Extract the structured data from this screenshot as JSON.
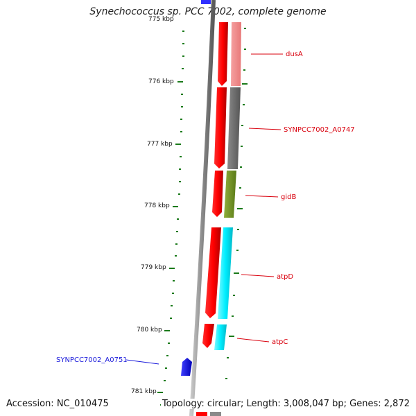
{
  "title": "Synechococcus sp. PCC 7002, complete genome",
  "accession": "Accession: NC_010475",
  "topology": "Topology: circular; Length: 3,008,047 bp; Genes: 2,872",
  "ticks": [
    "775 kbp",
    "776 kbp",
    "777 kbp",
    "778 kbp",
    "779 kbp",
    "780 kbp",
    "781 kbp"
  ],
  "genes": [
    {
      "name": "dusA",
      "color": "#d9000d"
    },
    {
      "name": "SYNPCC7002_A0747",
      "color": "#d9000d"
    },
    {
      "name": "gidB",
      "color": "#d9000d"
    },
    {
      "name": "atpD",
      "color": "#d9000d"
    },
    {
      "name": "atpC",
      "color": "#d9000d"
    },
    {
      "name": "SYNPCC7002_A0751",
      "color": "#1a1adb"
    }
  ],
  "colors": {
    "cds": "#ff0000",
    "reverse": "#0000ee",
    "dusA": "#f08080",
    "A0747": "#6e6e6e",
    "gidB": "#6b8e23",
    "atp": "#00e5ee",
    "backbone": "#7a7a7a",
    "tick": "#1a7a1a"
  }
}
